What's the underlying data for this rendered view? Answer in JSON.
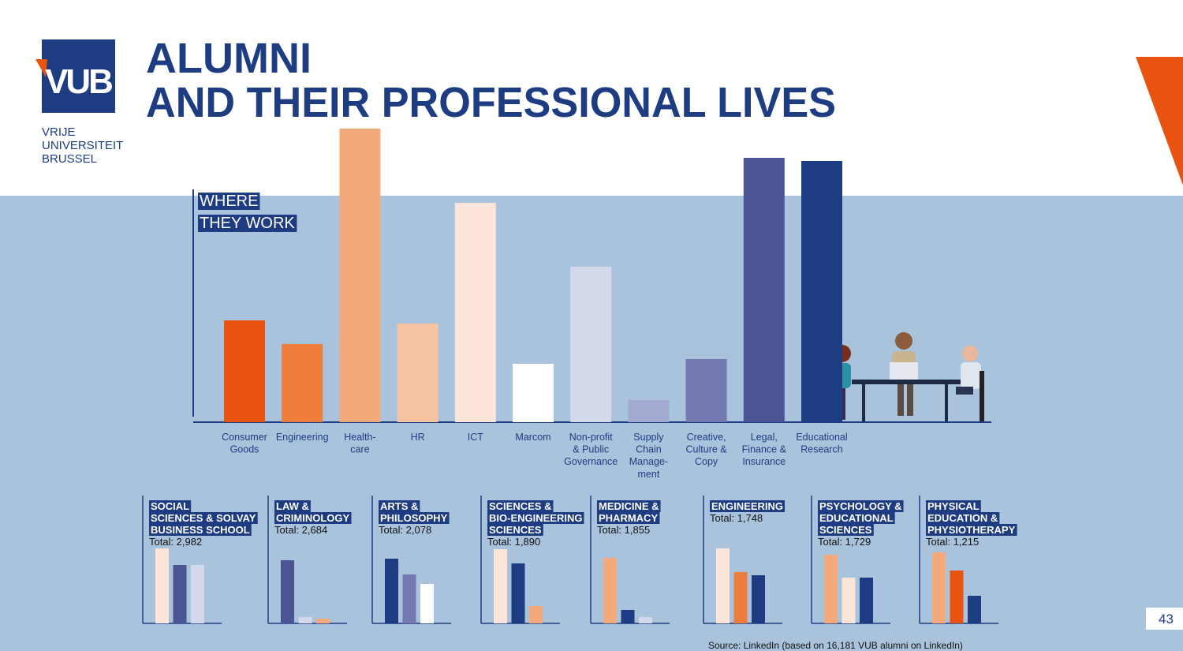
{
  "logo": {
    "mark": "VUB",
    "lines": [
      "VRIJE",
      "UNIVERSITEIT",
      "BRUSSEL"
    ]
  },
  "title": [
    "ALUMNI",
    "AND THEIR PROFESSIONAL LIVES"
  ],
  "chart_data": [
    {
      "type": "bar",
      "title": [
        "WHERE",
        "THEY WORK"
      ],
      "categories": [
        [
          "Consumer",
          "Goods"
        ],
        [
          "Engineering"
        ],
        [
          "Health-",
          "care"
        ],
        [
          "HR"
        ],
        [
          "ICT"
        ],
        [
          "Marcom"
        ],
        [
          "Non-profit",
          "& Public",
          "Governance"
        ],
        [
          "Supply",
          "Chain",
          "Manage-",
          "ment"
        ],
        [
          "Creative,",
          "Culture &",
          "Copy"
        ],
        [
          "Legal,",
          "Finance &",
          "Insurance"
        ],
        [
          "Educational",
          "Research"
        ]
      ],
      "values": [
        129,
        99,
        372,
        125,
        278,
        74,
        197,
        28,
        80,
        335,
        331
      ],
      "colors": [
        "#e8540f",
        "#ef7d3c",
        "#f4a97a",
        "#f7c4a3",
        "#fde6d9",
        "#ffffff",
        "#d3d9ea",
        "#a3aad1",
        "#7479b1",
        "#4b5594",
        "#1d3c82"
      ]
    },
    {
      "type": "bar",
      "title": [
        "SOCIAL",
        "SCIENCES & SOLVAY",
        "BUSINESS SCHOOL"
      ],
      "subtitle": "Total: 2,982",
      "values": [
        95,
        74,
        74
      ],
      "colors": [
        "#fde6d9",
        "#4b5594",
        "#d3d9ea"
      ]
    },
    {
      "type": "bar",
      "title": [
        "LAW &",
        "CRIMINOLOGY"
      ],
      "subtitle": "Total: 2,684",
      "values": [
        80,
        8,
        6
      ],
      "colors": [
        "#4b5594",
        "#d3d9ea",
        "#f4a97a"
      ]
    },
    {
      "type": "bar",
      "title": [
        "ARTS &",
        "PHILOSOPHY"
      ],
      "subtitle": "Total: 2,078",
      "values": [
        82,
        62,
        50
      ],
      "colors": [
        "#1d3c82",
        "#7479b1",
        "#ffffff"
      ]
    },
    {
      "type": "bar",
      "title": [
        "SCIENCES &",
        "BIO-ENGINEERING",
        "SCIENCES"
      ],
      "subtitle": "Total: 1,890",
      "values": [
        94,
        76,
        22
      ],
      "colors": [
        "#fde6d9",
        "#1d3c82",
        "#f4a97a"
      ]
    },
    {
      "type": "bar",
      "title": [
        "MEDICINE &",
        "PHARMACY"
      ],
      "subtitle": "Total: 1,855",
      "values": [
        83,
        17,
        8
      ],
      "colors": [
        "#f4a97a",
        "#1d3c82",
        "#d3d9ea"
      ]
    },
    {
      "type": "bar",
      "title": [
        "ENGINEERING"
      ],
      "subtitle": "Total: 1,748",
      "values": [
        95,
        65,
        61
      ],
      "colors": [
        "#fde6d9",
        "#ef7d3c",
        "#1d3c82"
      ]
    },
    {
      "type": "bar",
      "title": [
        "PSYCHOLOGY &",
        "EDUCATIONAL",
        "SCIENCES"
      ],
      "subtitle": "Total: 1,729",
      "values": [
        87,
        58,
        58
      ],
      "colors": [
        "#f4a97a",
        "#fde6d9",
        "#1d3c82"
      ]
    },
    {
      "type": "bar",
      "title": [
        "PHYSICAL",
        "EDUCATION &",
        "PHYSIOTHERAPY"
      ],
      "subtitle": "Total: 1,215",
      "values": [
        90,
        67,
        35
      ],
      "colors": [
        "#f4a97a",
        "#e8540f",
        "#1d3c82"
      ]
    }
  ],
  "source": "Source: LinkedIn  (based on 16,181 VUB alumni on LinkedIn)",
  "page_number": "43"
}
